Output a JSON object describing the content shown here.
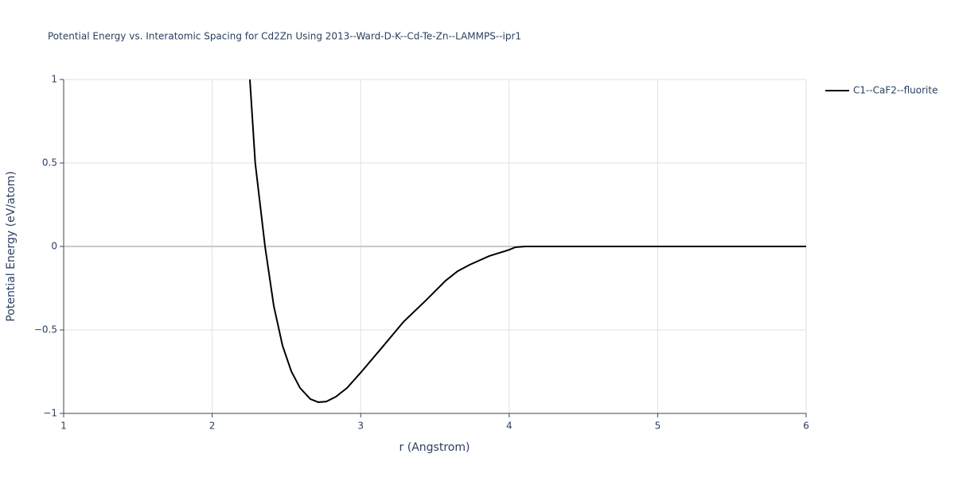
{
  "chart_data": {
    "type": "line",
    "title": "Potential Energy vs. Interatomic Spacing for Cd2Zn Using 2013--Ward-D-K--Cd-Te-Zn--LAMMPS--ipr1",
    "xlabel": "r (Angstrom)",
    "ylabel": "Potential Energy (eV/atom)",
    "x": [
      2.254,
      2.29,
      2.356,
      2.415,
      2.474,
      2.533,
      2.592,
      2.661,
      2.715,
      2.768,
      2.833,
      2.908,
      2.999,
      3.144,
      3.288,
      3.438,
      3.572,
      3.653,
      3.733,
      3.867,
      4.0,
      4.04,
      4.11,
      6.0
    ],
    "series": [
      {
        "name": "C1--CaF2--fluorite",
        "color": "#000000",
        "values": [
          1.0,
          0.5,
          0.0,
          -0.357,
          -0.595,
          -0.748,
          -0.848,
          -0.914,
          -0.933,
          -0.929,
          -0.9,
          -0.848,
          -0.757,
          -0.605,
          -0.452,
          -0.324,
          -0.205,
          -0.148,
          -0.11,
          -0.057,
          -0.02,
          -0.005,
          0.0,
          0.0
        ]
      }
    ],
    "xlim": [
      1,
      6
    ],
    "ylim": [
      -1,
      1
    ],
    "xticks": [
      1,
      2,
      3,
      4,
      5,
      6
    ],
    "yticks": [
      {
        "value": -1,
        "label": "−1"
      },
      {
        "value": -0.5,
        "label": "−0.5"
      },
      0,
      0.5,
      1
    ],
    "grid": true,
    "legend": "right"
  }
}
